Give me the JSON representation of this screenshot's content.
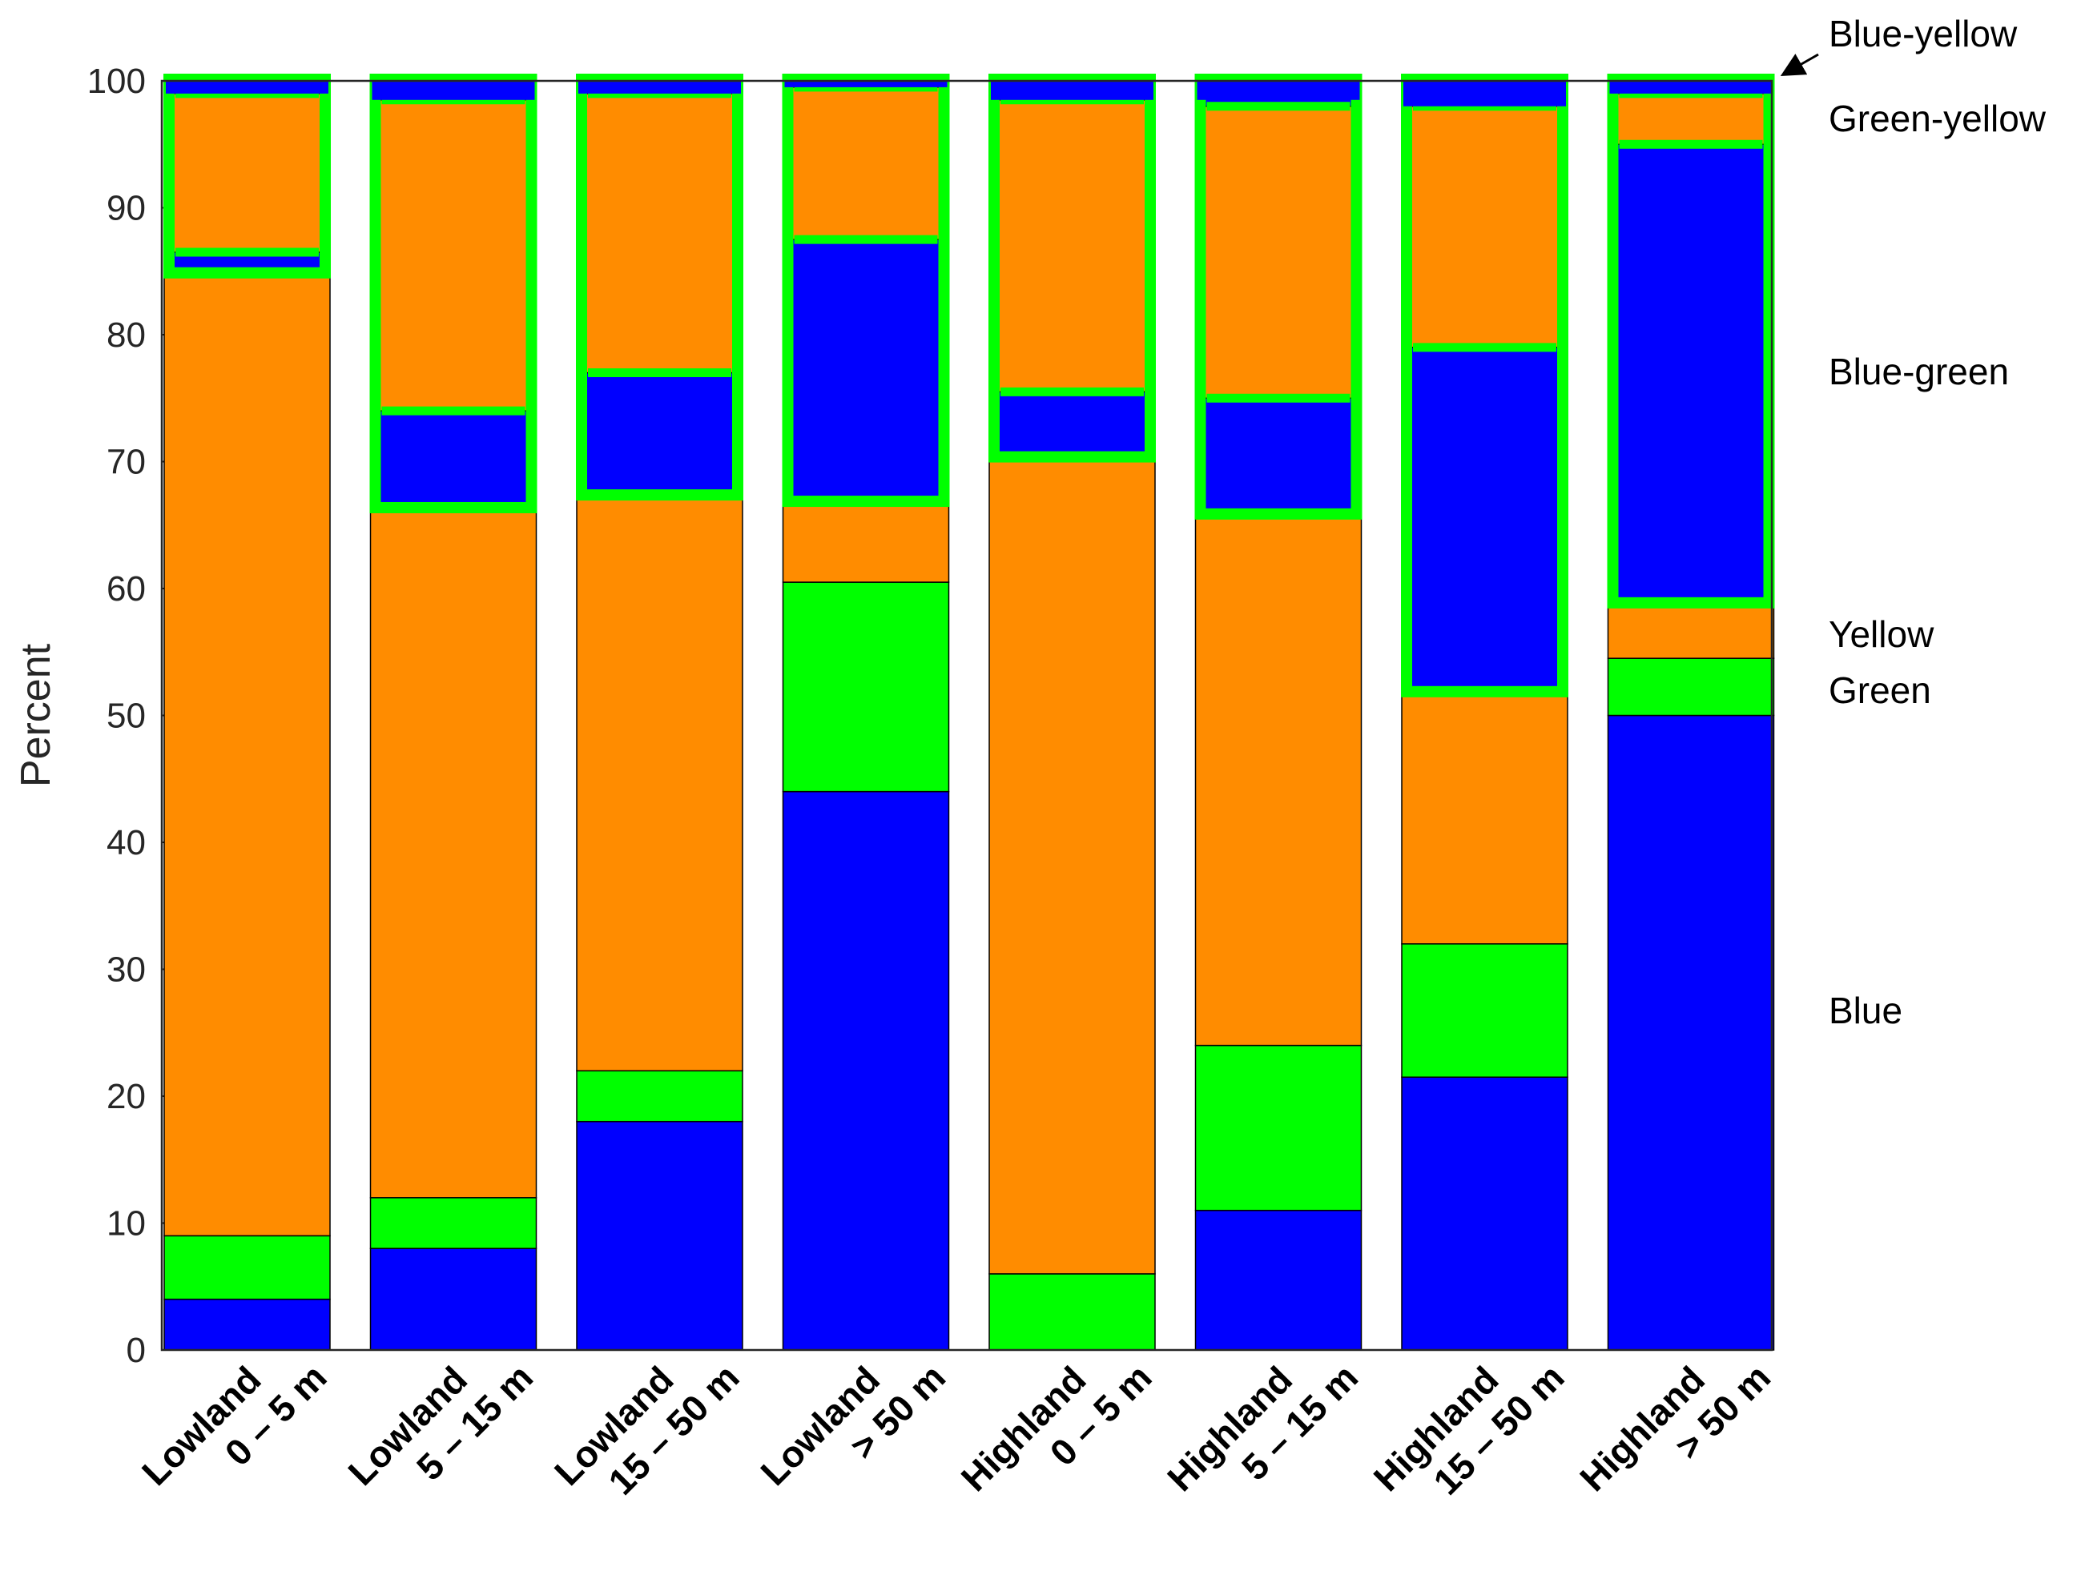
{
  "colors": {
    "blue": "#0000ff",
    "green": "#00ff00",
    "orange": "#ff8c00",
    "outline": "#000000",
    "highlight": "#00ff00"
  },
  "chart_data": {
    "type": "bar",
    "stacked": true,
    "title": "",
    "xlabel": "",
    "ylabel": "Percent",
    "ylim": [
      0,
      100
    ],
    "yticks": [
      0,
      10,
      20,
      30,
      40,
      50,
      60,
      70,
      80,
      90,
      100
    ],
    "categories": [
      {
        "line1": "Lowland",
        "line2": "0 – 5 m"
      },
      {
        "line1": "Lowland",
        "line2": "5 – 15 m"
      },
      {
        "line1": "Lowland",
        "line2": "15 – 50 m"
      },
      {
        "line1": "Lowland",
        "line2": "> 50 m"
      },
      {
        "line1": "Highland",
        "line2": "0 – 5 m"
      },
      {
        "line1": "Highland",
        "line2": "5 – 15 m"
      },
      {
        "line1": "Highland",
        "line2": "15 – 50 m"
      },
      {
        "line1": "Highland",
        "line2": "> 50 m"
      }
    ],
    "series": [
      {
        "name": "Blue",
        "color": "blue",
        "values": [
          4,
          8,
          18,
          44,
          0,
          11,
          21.5,
          50
        ]
      },
      {
        "name": "Green",
        "color": "green",
        "values": [
          5,
          4,
          4,
          16.5,
          6,
          13,
          10.5,
          4.5
        ]
      },
      {
        "name": "Yellow",
        "color": "orange",
        "values": [
          76,
          54.5,
          45.5,
          6.5,
          64.5,
          42,
          20,
          4.5
        ]
      },
      {
        "name": "Blue-green",
        "color": "blue",
        "values": [
          1.5,
          7.5,
          9.5,
          20.5,
          5,
          9,
          27,
          36
        ]
      },
      {
        "name": "Green-yellow",
        "color": "orange",
        "values": [
          12.5,
          24.5,
          22,
          12,
          23,
          23,
          19,
          4
        ]
      },
      {
        "name": "Blue-yellow",
        "color": "blue",
        "values": [
          1,
          1.5,
          1,
          0.5,
          1.5,
          1.5,
          2,
          1
        ]
      }
    ],
    "highlight_from_series": 3,
    "legend": {
      "placement": "right",
      "pointer_target": "Blue-yellow",
      "entries": [
        "Blue-yellow",
        "Green-yellow",
        "Blue-green",
        "Yellow",
        "Green",
        "Blue"
      ]
    }
  }
}
